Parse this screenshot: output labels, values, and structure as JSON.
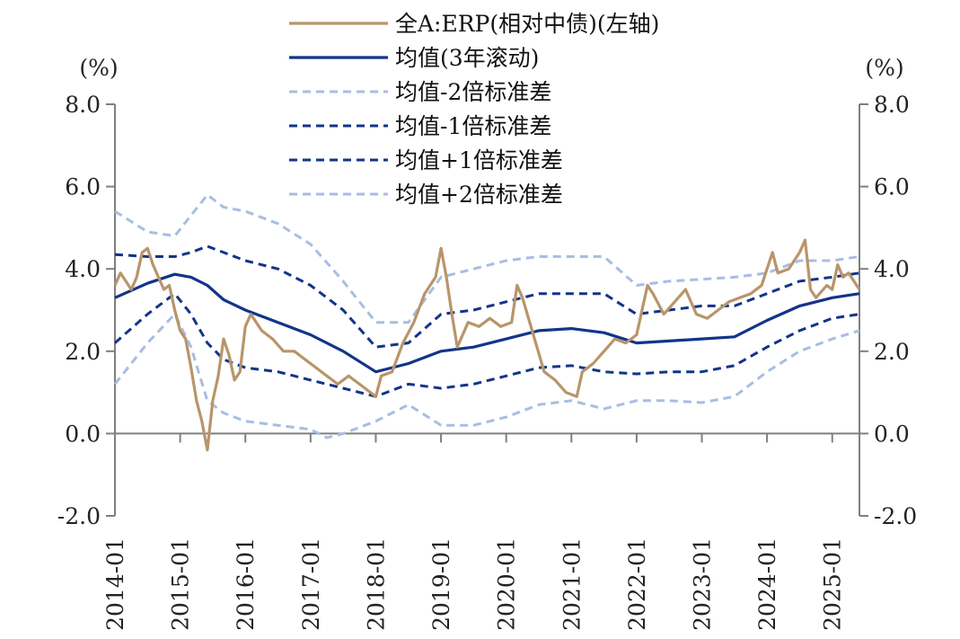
{
  "chart_data": {
    "type": "line",
    "y_unit_left": "(%)",
    "y_unit_right": "(%)",
    "ylim": [
      -2,
      8
    ],
    "yticks": [
      "8.0",
      "6.0",
      "4.0",
      "2.0",
      "0.0",
      "-2.0"
    ],
    "ytick_values": [
      8,
      6,
      4,
      2,
      0,
      -2
    ],
    "xlim": [
      "2014-01",
      "2025-06"
    ],
    "xticks": [
      "2014-01",
      "2015-01",
      "2016-01",
      "2017-01",
      "2018-01",
      "2019-01",
      "2020-01",
      "2021-01",
      "2022-01",
      "2023-01",
      "2024-01",
      "2025-01"
    ],
    "colors": {
      "erp": "#b8956a",
      "mean": "#12348a",
      "std1": "#12348a",
      "std2": "#a9bde3",
      "axis": "#7f7f7f",
      "negative_tick": "#e00000"
    },
    "legend": {
      "placement": "top-center",
      "entries": [
        {
          "key": "erp",
          "label": "全A:ERP(相对中债)(左轴)",
          "style": "solid-thick"
        },
        {
          "key": "mean",
          "label": "均值(3年滚动)",
          "style": "solid"
        },
        {
          "key": "minus2",
          "label": "均值-2倍标准差",
          "style": "dashed-light"
        },
        {
          "key": "minus1",
          "label": "均值-1倍标准差",
          "style": "dashed-dark"
        },
        {
          "key": "plus1",
          "label": "均值+1倍标准差",
          "style": "dashed-dark"
        },
        {
          "key": "plus2",
          "label": "均值+2倍标准差",
          "style": "dashed-light"
        }
      ]
    },
    "series": [
      {
        "key": "erp",
        "name": "全A:ERP(相对中债)(左轴)",
        "points": [
          [
            "2014-01",
            3.6
          ],
          [
            "2014-02",
            3.9
          ],
          [
            "2014-04",
            3.5
          ],
          [
            "2014-05",
            3.8
          ],
          [
            "2014-06",
            4.4
          ],
          [
            "2014-07",
            4.5
          ],
          [
            "2014-08",
            4.1
          ],
          [
            "2014-09",
            3.8
          ],
          [
            "2014-10",
            3.5
          ],
          [
            "2014-11",
            3.6
          ],
          [
            "2014-12",
            3.0
          ],
          [
            "2015-01",
            2.5
          ],
          [
            "2015-02",
            2.3
          ],
          [
            "2015-03",
            1.6
          ],
          [
            "2015-04",
            0.8
          ],
          [
            "2015-05",
            0.3
          ],
          [
            "2015-06",
            -0.4
          ],
          [
            "2015-07",
            0.8
          ],
          [
            "2015-08",
            1.4
          ],
          [
            "2015-09",
            2.3
          ],
          [
            "2015-10",
            1.9
          ],
          [
            "2015-11",
            1.3
          ],
          [
            "2015-12",
            1.5
          ],
          [
            "2016-01",
            2.6
          ],
          [
            "2016-02",
            2.9
          ],
          [
            "2016-04",
            2.5
          ],
          [
            "2016-06",
            2.3
          ],
          [
            "2016-08",
            2.0
          ],
          [
            "2016-10",
            2.0
          ],
          [
            "2016-12",
            1.8
          ],
          [
            "2017-02",
            1.6
          ],
          [
            "2017-04",
            1.4
          ],
          [
            "2017-06",
            1.2
          ],
          [
            "2017-08",
            1.4
          ],
          [
            "2017-10",
            1.2
          ],
          [
            "2017-12",
            1.0
          ],
          [
            "2018-01",
            0.9
          ],
          [
            "2018-02",
            1.4
          ],
          [
            "2018-04",
            1.5
          ],
          [
            "2018-06",
            2.2
          ],
          [
            "2018-08",
            2.7
          ],
          [
            "2018-10",
            3.4
          ],
          [
            "2018-12",
            3.8
          ],
          [
            "2019-01",
            4.5
          ],
          [
            "2019-02",
            3.8
          ],
          [
            "2019-03",
            2.9
          ],
          [
            "2019-04",
            2.1
          ],
          [
            "2019-06",
            2.7
          ],
          [
            "2019-08",
            2.6
          ],
          [
            "2019-10",
            2.8
          ],
          [
            "2019-12",
            2.6
          ],
          [
            "2020-02",
            2.7
          ],
          [
            "2020-03",
            3.6
          ],
          [
            "2020-04",
            3.3
          ],
          [
            "2020-06",
            2.4
          ],
          [
            "2020-08",
            1.5
          ],
          [
            "2020-10",
            1.3
          ],
          [
            "2020-12",
            1.0
          ],
          [
            "2021-02",
            0.9
          ],
          [
            "2021-03",
            1.5
          ],
          [
            "2021-05",
            1.7
          ],
          [
            "2021-07",
            2.0
          ],
          [
            "2021-09",
            2.3
          ],
          [
            "2021-11",
            2.2
          ],
          [
            "2022-01",
            2.4
          ],
          [
            "2022-03",
            3.6
          ],
          [
            "2022-04",
            3.4
          ],
          [
            "2022-06",
            2.9
          ],
          [
            "2022-08",
            3.2
          ],
          [
            "2022-10",
            3.5
          ],
          [
            "2022-12",
            2.9
          ],
          [
            "2023-02",
            2.8
          ],
          [
            "2023-04",
            3.0
          ],
          [
            "2023-06",
            3.2
          ],
          [
            "2023-08",
            3.3
          ],
          [
            "2023-10",
            3.4
          ],
          [
            "2023-12",
            3.6
          ],
          [
            "2024-01",
            4.0
          ],
          [
            "2024-02",
            4.4
          ],
          [
            "2024-03",
            3.9
          ],
          [
            "2024-05",
            4.0
          ],
          [
            "2024-07",
            4.4
          ],
          [
            "2024-08",
            4.7
          ],
          [
            "2024-09",
            3.5
          ],
          [
            "2024-10",
            3.3
          ],
          [
            "2024-12",
            3.6
          ],
          [
            "2025-01",
            3.5
          ],
          [
            "2025-02",
            4.1
          ],
          [
            "2025-03",
            3.8
          ],
          [
            "2025-04",
            3.9
          ],
          [
            "2025-06",
            3.5
          ]
        ]
      },
      {
        "key": "mean",
        "name": "均值(3年滚动)",
        "points": [
          [
            "2014-01",
            3.3
          ],
          [
            "2014-07",
            3.65
          ],
          [
            "2014-12",
            3.87
          ],
          [
            "2015-03",
            3.8
          ],
          [
            "2015-06",
            3.6
          ],
          [
            "2015-09",
            3.25
          ],
          [
            "2016-01",
            3.0
          ],
          [
            "2016-07",
            2.7
          ],
          [
            "2017-01",
            2.4
          ],
          [
            "2017-07",
            2.0
          ],
          [
            "2018-01",
            1.5
          ],
          [
            "2018-07",
            1.7
          ],
          [
            "2019-01",
            2.0
          ],
          [
            "2019-07",
            2.1
          ],
          [
            "2020-01",
            2.3
          ],
          [
            "2020-07",
            2.5
          ],
          [
            "2021-01",
            2.55
          ],
          [
            "2021-07",
            2.45
          ],
          [
            "2022-01",
            2.2
          ],
          [
            "2022-07",
            2.25
          ],
          [
            "2023-01",
            2.3
          ],
          [
            "2023-07",
            2.35
          ],
          [
            "2024-01",
            2.75
          ],
          [
            "2024-07",
            3.1
          ],
          [
            "2025-01",
            3.3
          ],
          [
            "2025-06",
            3.4
          ]
        ]
      },
      {
        "key": "minus1",
        "name": "均值-1倍标准差",
        "points": [
          [
            "2014-01",
            2.2
          ],
          [
            "2014-07",
            2.9
          ],
          [
            "2014-12",
            3.4
          ],
          [
            "2015-03",
            2.9
          ],
          [
            "2015-06",
            2.2
          ],
          [
            "2015-09",
            1.8
          ],
          [
            "2016-01",
            1.6
          ],
          [
            "2016-07",
            1.5
          ],
          [
            "2017-01",
            1.3
          ],
          [
            "2017-07",
            1.1
          ],
          [
            "2018-01",
            0.9
          ],
          [
            "2018-07",
            1.2
          ],
          [
            "2019-01",
            1.1
          ],
          [
            "2019-07",
            1.2
          ],
          [
            "2020-01",
            1.4
          ],
          [
            "2020-07",
            1.6
          ],
          [
            "2021-01",
            1.65
          ],
          [
            "2021-07",
            1.5
          ],
          [
            "2022-01",
            1.45
          ],
          [
            "2022-07",
            1.5
          ],
          [
            "2023-01",
            1.5
          ],
          [
            "2023-07",
            1.65
          ],
          [
            "2024-01",
            2.1
          ],
          [
            "2024-07",
            2.5
          ],
          [
            "2025-01",
            2.8
          ],
          [
            "2025-06",
            2.9
          ]
        ]
      },
      {
        "key": "plus1",
        "name": "均值+1倍标准差",
        "points": [
          [
            "2014-01",
            4.35
          ],
          [
            "2014-07",
            4.3
          ],
          [
            "2014-12",
            4.3
          ],
          [
            "2015-03",
            4.4
          ],
          [
            "2015-06",
            4.55
          ],
          [
            "2015-09",
            4.4
          ],
          [
            "2016-01",
            4.2
          ],
          [
            "2016-07",
            4.0
          ],
          [
            "2017-01",
            3.6
          ],
          [
            "2017-07",
            3.0
          ],
          [
            "2018-01",
            2.1
          ],
          [
            "2018-07",
            2.2
          ],
          [
            "2019-01",
            2.9
          ],
          [
            "2019-07",
            3.0
          ],
          [
            "2020-01",
            3.2
          ],
          [
            "2020-07",
            3.4
          ],
          [
            "2021-01",
            3.4
          ],
          [
            "2021-07",
            3.4
          ],
          [
            "2022-01",
            2.9
          ],
          [
            "2022-07",
            3.0
          ],
          [
            "2023-01",
            3.1
          ],
          [
            "2023-07",
            3.1
          ],
          [
            "2024-01",
            3.4
          ],
          [
            "2024-07",
            3.7
          ],
          [
            "2025-01",
            3.8
          ],
          [
            "2025-06",
            3.9
          ]
        ]
      },
      {
        "key": "minus2",
        "name": "均值-2倍标准差",
        "points": [
          [
            "2014-01",
            1.2
          ],
          [
            "2014-07",
            2.2
          ],
          [
            "2014-12",
            2.9
          ],
          [
            "2015-03",
            2.1
          ],
          [
            "2015-06",
            0.8
          ],
          [
            "2015-09",
            0.5
          ],
          [
            "2016-01",
            0.3
          ],
          [
            "2016-07",
            0.2
          ],
          [
            "2017-01",
            0.1
          ],
          [
            "2017-04",
            -0.1
          ],
          [
            "2017-07",
            0.0
          ],
          [
            "2018-01",
            0.3
          ],
          [
            "2018-07",
            0.7
          ],
          [
            "2019-01",
            0.2
          ],
          [
            "2019-07",
            0.2
          ],
          [
            "2020-01",
            0.4
          ],
          [
            "2020-07",
            0.7
          ],
          [
            "2021-01",
            0.8
          ],
          [
            "2021-07",
            0.6
          ],
          [
            "2022-01",
            0.8
          ],
          [
            "2022-07",
            0.8
          ],
          [
            "2023-01",
            0.75
          ],
          [
            "2023-07",
            0.9
          ],
          [
            "2024-01",
            1.5
          ],
          [
            "2024-07",
            2.0
          ],
          [
            "2025-01",
            2.3
          ],
          [
            "2025-06",
            2.5
          ]
        ]
      },
      {
        "key": "plus2",
        "name": "均值+2倍标准差",
        "points": [
          [
            "2014-01",
            5.4
          ],
          [
            "2014-07",
            4.9
          ],
          [
            "2014-12",
            4.8
          ],
          [
            "2015-03",
            5.3
          ],
          [
            "2015-06",
            5.8
          ],
          [
            "2015-09",
            5.5
          ],
          [
            "2016-01",
            5.4
          ],
          [
            "2016-07",
            5.1
          ],
          [
            "2017-01",
            4.6
          ],
          [
            "2017-07",
            3.7
          ],
          [
            "2018-01",
            2.7
          ],
          [
            "2018-07",
            2.7
          ],
          [
            "2019-01",
            3.8
          ],
          [
            "2019-07",
            4.0
          ],
          [
            "2020-01",
            4.2
          ],
          [
            "2020-07",
            4.3
          ],
          [
            "2021-01",
            4.3
          ],
          [
            "2021-07",
            4.3
          ],
          [
            "2022-01",
            3.6
          ],
          [
            "2022-07",
            3.7
          ],
          [
            "2023-01",
            3.75
          ],
          [
            "2023-07",
            3.8
          ],
          [
            "2024-01",
            3.9
          ],
          [
            "2024-07",
            4.2
          ],
          [
            "2025-01",
            4.2
          ],
          [
            "2025-06",
            4.3
          ]
        ]
      }
    ]
  }
}
